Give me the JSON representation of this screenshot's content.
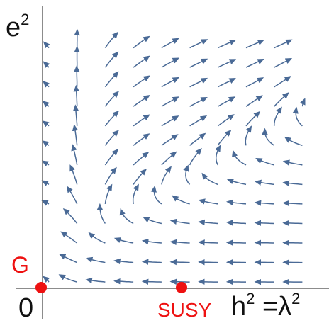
{
  "chart_data": {
    "type": "streamplot",
    "xlabel": {
      "base": "h",
      "sup": "2",
      "rest": " =λ",
      "sup2": "2"
    },
    "ylabel": {
      "base": "e",
      "sup": "2"
    },
    "origin_label": "0",
    "fixed_points": [
      {
        "name": "G",
        "x": 0,
        "y": 0,
        "color": "#ee1111"
      },
      {
        "name": "SUSY",
        "x": 1,
        "y": 0,
        "color": "#ee1111"
      }
    ],
    "xlim": [
      -0.02,
      2.05
    ],
    "ylim": [
      0,
      1.85
    ],
    "stream_color": "#4a6a96"
  },
  "labels": {
    "origin": "0",
    "g_point": "G",
    "susy_point": "SUSY"
  }
}
